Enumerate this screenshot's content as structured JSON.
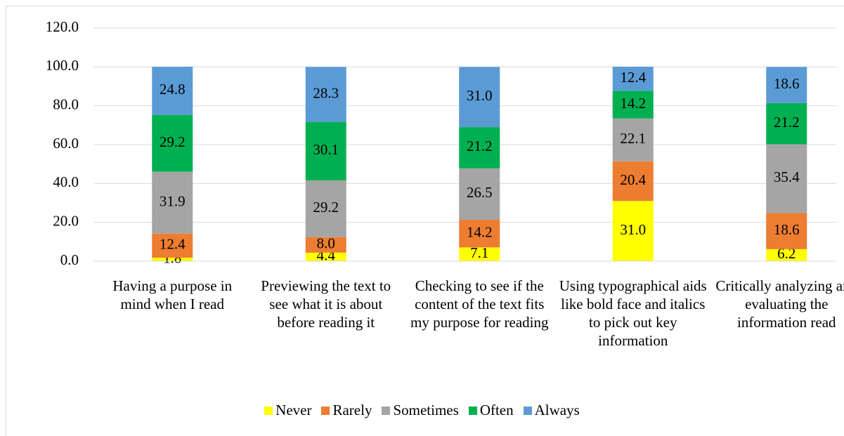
{
  "chart_data": {
    "type": "stacked_bar",
    "categories": [
      "Having a purpose in mind when I read",
      "Previewing the text to see what it is about before reading it",
      "Checking to see if the content of the text fits my purpose for reading",
      "Using typographical aids like bold face and italics to pick out key information",
      "Critically analyzing and evaluating the information read"
    ],
    "series": [
      {
        "name": "Never",
        "color": "#ffff00",
        "values": [
          1.8,
          4.4,
          7.1,
          31.0,
          6.2
        ],
        "value_labels": [
          "1.8",
          "4.4",
          "7.1",
          "31.0",
          "6.2"
        ]
      },
      {
        "name": "Rarely",
        "color": "#ed7d31",
        "values": [
          12.4,
          8.0,
          14.2,
          20.4,
          18.6
        ],
        "value_labels": [
          "12.4",
          "8.0",
          "14.2",
          "20.4",
          "18.6"
        ]
      },
      {
        "name": "Sometimes",
        "color": "#a5a5a5",
        "values": [
          31.9,
          29.2,
          26.5,
          22.1,
          35.4
        ],
        "value_labels": [
          "31.9",
          "29.2",
          "26.5",
          "22.1",
          "35.4"
        ]
      },
      {
        "name": "Often",
        "color": "#00b050",
        "values": [
          29.2,
          30.1,
          21.2,
          14.2,
          21.2
        ],
        "value_labels": [
          "29.2",
          "30.1",
          "21.2",
          "14.2",
          "21.2"
        ]
      },
      {
        "name": "Always",
        "color": "#5b9bd5",
        "values": [
          24.8,
          28.3,
          31.0,
          12.4,
          18.6
        ],
        "value_labels": [
          "24.8",
          "28.3",
          "31.0",
          "12.4",
          "18.6"
        ]
      }
    ],
    "ylim": [
      0,
      120
    ],
    "yticks": [
      {
        "value": 0,
        "label": "0.0"
      },
      {
        "value": 20,
        "label": "20.0"
      },
      {
        "value": 40,
        "label": "40.0"
      },
      {
        "value": 60,
        "label": "60.0"
      },
      {
        "value": 80,
        "label": "80.0"
      },
      {
        "value": 100,
        "label": "100.0"
      },
      {
        "value": 120,
        "label": "120.0"
      }
    ],
    "grid": true,
    "legend": "bottom"
  }
}
